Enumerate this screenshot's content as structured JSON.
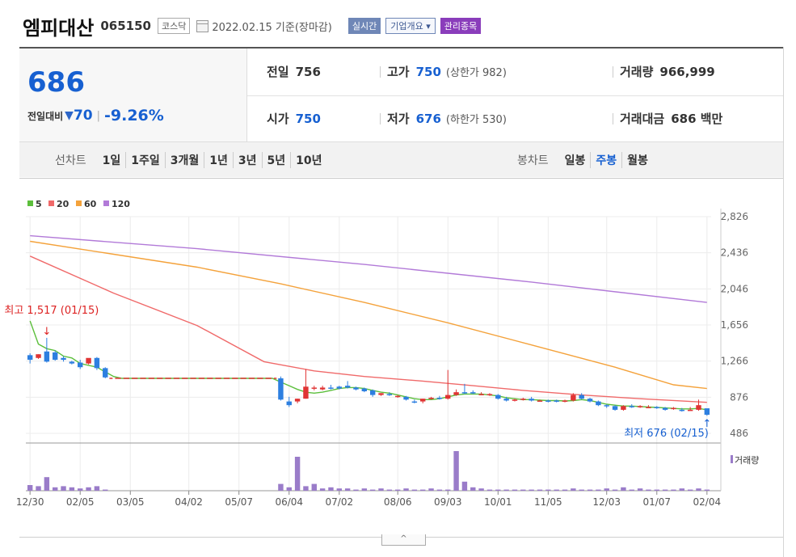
{
  "header": {
    "name": "엠피대산",
    "code": "065150",
    "market": "코스닥",
    "date": "2022.02.15 기준(장마감)",
    "realtime_label": "실시간",
    "company_label": "기업개요 ▾",
    "managed_label": "관리종목"
  },
  "quote": {
    "price": "686",
    "change_label": "전일대비",
    "change_arrow": "▼",
    "change": "70",
    "change_pct": "-9.26%",
    "stats": [
      {
        "key": "전일",
        "value": "756",
        "sub": ""
      },
      {
        "key": "고가",
        "value": "750",
        "sub": "(상한가 982)"
      },
      {
        "key": "거래량",
        "value": "966,999",
        "sub": ""
      },
      {
        "key": "시가",
        "value": "750",
        "sub": ""
      },
      {
        "key": "저가",
        "value": "676",
        "sub": "(하한가 530)"
      },
      {
        "key": "거래대금",
        "value": "686 백만",
        "sub": ""
      }
    ]
  },
  "line_tabs": {
    "heading": "선차트",
    "items": [
      "1일",
      "1주일",
      "3개월",
      "1년",
      "3년",
      "5년",
      "10년"
    ]
  },
  "candle_tabs": {
    "heading": "봉차트",
    "items": [
      "일봉",
      "주봉",
      "월봉"
    ],
    "selected": "주봉"
  },
  "colors": {
    "up": "#e03434",
    "down": "#2d7fe0",
    "ma5": "#5cbf3c",
    "ma20": "#f06a6a",
    "ma60": "#f4a23b",
    "ma120": "#b27ad8",
    "volume": "#9a7cc9",
    "accent_blue": "#1760d1"
  },
  "chart_data": {
    "type": "candlestick",
    "legend": [
      {
        "name": "5",
        "color": "#5cbf3c"
      },
      {
        "name": "20",
        "color": "#f06a6a"
      },
      {
        "name": "60",
        "color": "#f4a23b"
      },
      {
        "name": "120",
        "color": "#b27ad8"
      }
    ],
    "y_ticks": [
      2826,
      2436,
      2046,
      1656,
      1266,
      876,
      486
    ],
    "ylim": [
      486,
      2826
    ],
    "x_ticks": [
      "12/30",
      "02/05",
      "03/05",
      "04/02",
      "05/07",
      "06/04",
      "07/02",
      "08/06",
      "09/03",
      "10/01",
      "11/05",
      "12/03",
      "01/07",
      "02/04"
    ],
    "annotations": {
      "high": "최고 1,517 (01/15)",
      "low": "최저 676 (02/15)"
    },
    "volume_label": "거래량",
    "candles": [
      [
        1330,
        1350,
        1280,
        1240
      ],
      [
        1300,
        1340,
        1340,
        1290
      ],
      [
        1370,
        1517,
        1260,
        1250
      ],
      [
        1360,
        1380,
        1280,
        1270
      ],
      [
        1300,
        1320,
        1280,
        1260
      ],
      [
        1260,
        1270,
        1240,
        1230
      ],
      [
        1250,
        1280,
        1200,
        1180
      ],
      [
        1240,
        1280,
        1300,
        1230
      ],
      [
        1300,
        1310,
        1190,
        1170
      ],
      [
        1190,
        1200,
        1090,
        1080
      ],
      [
        1080,
        1080,
        1080,
        1080
      ],
      [
        1080,
        1080,
        1080,
        1080
      ],
      [
        1080,
        1080,
        1080,
        1080
      ],
      [
        1080,
        1080,
        1080,
        1080
      ],
      [
        1080,
        1080,
        1080,
        1080
      ],
      [
        1080,
        1080,
        1080,
        1080
      ],
      [
        1080,
        1080,
        1080,
        1080
      ],
      [
        1080,
        1080,
        1080,
        1080
      ],
      [
        1080,
        1080,
        1080,
        1080
      ],
      [
        1080,
        1080,
        1080,
        1080
      ],
      [
        1080,
        1080,
        1080,
        1080
      ],
      [
        1080,
        1080,
        1080,
        1080
      ],
      [
        1080,
        1080,
        1080,
        1080
      ],
      [
        1080,
        1080,
        1080,
        1080
      ],
      [
        1080,
        1080,
        1080,
        1080
      ],
      [
        1080,
        1080,
        1080,
        1080
      ],
      [
        1080,
        1080,
        1080,
        1080
      ],
      [
        1080,
        1080,
        1080,
        1080
      ],
      [
        1080,
        1080,
        1080,
        1080
      ],
      [
        1080,
        1080,
        1080,
        1080
      ],
      [
        1080,
        1100,
        850,
        840
      ],
      [
        830,
        880,
        790,
        770
      ],
      [
        830,
        860,
        860,
        810
      ],
      [
        860,
        1180,
        990,
        860
      ],
      [
        970,
        1000,
        980,
        950
      ],
      [
        960,
        1000,
        980,
        950
      ],
      [
        980,
        1010,
        970,
        960
      ],
      [
        990,
        1000,
        970,
        960
      ],
      [
        1000,
        1050,
        980,
        970
      ],
      [
        980,
        990,
        960,
        950
      ],
      [
        970,
        980,
        940,
        930
      ],
      [
        950,
        960,
        900,
        880
      ],
      [
        900,
        920,
        920,
        890
      ],
      [
        910,
        930,
        900,
        890
      ],
      [
        880,
        900,
        890,
        870
      ],
      [
        880,
        890,
        850,
        840
      ],
      [
        830,
        850,
        820,
        810
      ],
      [
        830,
        860,
        860,
        810
      ],
      [
        860,
        880,
        870,
        850
      ],
      [
        870,
        890,
        860,
        850
      ],
      [
        860,
        1170,
        900,
        850
      ],
      [
        900,
        960,
        930,
        890
      ],
      [
        930,
        1020,
        920,
        910
      ],
      [
        930,
        950,
        920,
        910
      ],
      [
        910,
        930,
        910,
        900
      ],
      [
        910,
        920,
        910,
        890
      ],
      [
        900,
        910,
        860,
        850
      ],
      [
        860,
        880,
        840,
        830
      ],
      [
        840,
        860,
        850,
        830
      ],
      [
        850,
        870,
        860,
        840
      ],
      [
        860,
        880,
        840,
        830
      ],
      [
        840,
        850,
        840,
        830
      ],
      [
        840,
        850,
        830,
        820
      ],
      [
        840,
        850,
        830,
        820
      ],
      [
        830,
        850,
        840,
        820
      ],
      [
        840,
        920,
        900,
        830
      ],
      [
        900,
        920,
        860,
        850
      ],
      [
        860,
        870,
        830,
        820
      ],
      [
        830,
        840,
        790,
        780
      ],
      [
        790,
        800,
        780,
        760
      ],
      [
        780,
        790,
        740,
        730
      ],
      [
        740,
        790,
        780,
        730
      ],
      [
        780,
        800,
        770,
        760
      ],
      [
        780,
        790,
        780,
        760
      ],
      [
        770,
        790,
        770,
        760
      ],
      [
        770,
        780,
        760,
        750
      ],
      [
        760,
        770,
        740,
        730
      ],
      [
        750,
        770,
        760,
        740
      ],
      [
        740,
        760,
        730,
        720
      ],
      [
        740,
        770,
        740,
        730
      ],
      [
        740,
        850,
        790,
        730
      ],
      [
        756,
        750,
        686,
        676
      ]
    ],
    "ma5": [
      [
        0,
        1700
      ],
      [
        1,
        1450
      ],
      [
        2,
        1400
      ],
      [
        3,
        1380
      ],
      [
        4,
        1320
      ],
      [
        5,
        1300
      ],
      [
        6,
        1240
      ],
      [
        7,
        1220
      ],
      [
        8,
        1200
      ],
      [
        9,
        1150
      ],
      [
        10,
        1100
      ],
      [
        11,
        1080
      ],
      [
        12,
        1080
      ],
      [
        13,
        1080
      ],
      [
        14,
        1080
      ],
      [
        15,
        1080
      ],
      [
        16,
        1080
      ],
      [
        17,
        1080
      ],
      [
        18,
        1080
      ],
      [
        19,
        1080
      ],
      [
        20,
        1080
      ],
      [
        21,
        1080
      ],
      [
        22,
        1080
      ],
      [
        23,
        1080
      ],
      [
        24,
        1080
      ],
      [
        25,
        1080
      ],
      [
        26,
        1080
      ],
      [
        27,
        1080
      ],
      [
        28,
        1080
      ],
      [
        29,
        1080
      ],
      [
        30,
        1040
      ],
      [
        31,
        1000
      ],
      [
        32,
        960
      ],
      [
        33,
        930
      ],
      [
        34,
        920
      ],
      [
        35,
        930
      ],
      [
        36,
        950
      ],
      [
        37,
        970
      ],
      [
        38,
        980
      ],
      [
        39,
        980
      ],
      [
        40,
        970
      ],
      [
        41,
        950
      ],
      [
        42,
        930
      ],
      [
        43,
        920
      ],
      [
        44,
        900
      ],
      [
        45,
        880
      ],
      [
        46,
        860
      ],
      [
        47,
        850
      ],
      [
        48,
        850
      ],
      [
        49,
        860
      ],
      [
        50,
        880
      ],
      [
        51,
        900
      ],
      [
        52,
        910
      ],
      [
        53,
        910
      ],
      [
        54,
        910
      ],
      [
        55,
        900
      ],
      [
        56,
        890
      ],
      [
        57,
        870
      ],
      [
        58,
        860
      ],
      [
        59,
        850
      ],
      [
        60,
        850
      ],
      [
        61,
        845
      ],
      [
        62,
        840
      ],
      [
        63,
        840
      ],
      [
        64,
        835
      ],
      [
        65,
        840
      ],
      [
        66,
        850
      ],
      [
        67,
        840
      ],
      [
        68,
        820
      ],
      [
        69,
        800
      ],
      [
        70,
        790
      ],
      [
        71,
        780
      ],
      [
        72,
        780
      ],
      [
        73,
        775
      ],
      [
        74,
        770
      ],
      [
        75,
        765
      ],
      [
        76,
        760
      ],
      [
        77,
        755
      ],
      [
        78,
        750
      ],
      [
        79,
        750
      ],
      [
        80,
        755
      ],
      [
        81,
        740
      ]
    ],
    "ma20": [
      [
        0,
        2400
      ],
      [
        10,
        2000
      ],
      [
        20,
        1650
      ],
      [
        28,
        1260
      ],
      [
        34,
        1160
      ],
      [
        40,
        1100
      ],
      [
        47,
        1050
      ],
      [
        53,
        1000
      ],
      [
        59,
        950
      ],
      [
        66,
        900
      ],
      [
        73,
        860
      ],
      [
        81,
        820
      ]
    ],
    "ma60": [
      [
        0,
        2560
      ],
      [
        10,
        2420
      ],
      [
        20,
        2280
      ],
      [
        30,
        2100
      ],
      [
        40,
        1900
      ],
      [
        50,
        1680
      ],
      [
        60,
        1440
      ],
      [
        70,
        1200
      ],
      [
        77,
        1010
      ],
      [
        81,
        970
      ]
    ],
    "ma120": [
      [
        0,
        2620
      ],
      [
        20,
        2480
      ],
      [
        40,
        2310
      ],
      [
        60,
        2120
      ],
      [
        81,
        1900
      ]
    ],
    "volume": [
      5,
      4,
      12,
      3,
      4,
      3,
      2,
      3,
      4,
      1,
      0,
      0,
      0,
      0,
      0,
      0,
      0,
      0,
      0,
      0,
      0,
      0,
      0,
      0,
      0,
      0,
      0,
      0,
      0,
      0,
      6,
      3,
      30,
      4,
      6,
      2,
      3,
      2,
      2,
      1,
      2,
      1,
      2,
      1,
      1,
      2,
      1,
      1,
      2,
      1,
      1,
      35,
      8,
      3,
      2,
      1,
      1,
      1,
      1,
      1,
      1,
      1,
      1,
      1,
      1,
      2,
      1,
      1,
      1,
      2,
      1,
      3,
      1,
      2,
      1,
      1,
      1,
      1,
      2,
      1,
      2,
      1
    ]
  }
}
